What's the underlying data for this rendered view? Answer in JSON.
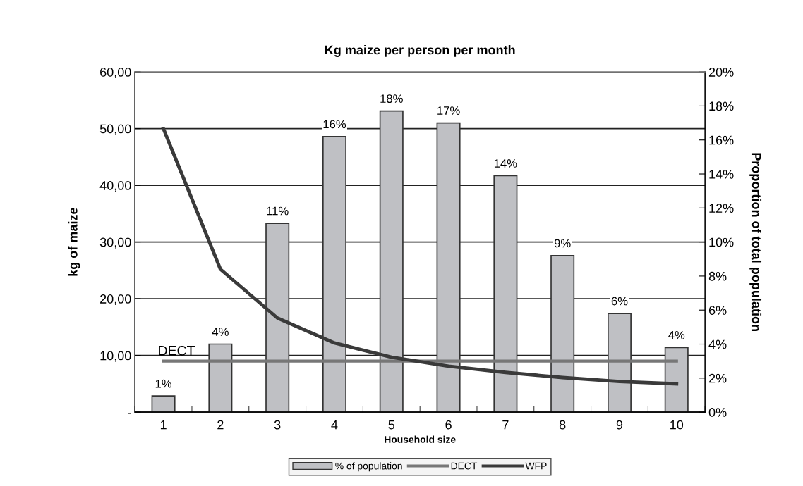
{
  "chart_data": {
    "type": "bar",
    "title": "Kg maize per person per month",
    "xlabel": "Household size",
    "ylabel": "kg of maize",
    "y2label": "Proportion of total population",
    "categories": [
      "1",
      "2",
      "3",
      "4",
      "5",
      "6",
      "7",
      "8",
      "9",
      "10"
    ],
    "series": [
      {
        "name": "% of population",
        "axis": "y2",
        "color": "#bfc0c4",
        "values": [
          0.95,
          4.0,
          11.1,
          16.2,
          17.7,
          17.0,
          13.9,
          9.2,
          5.8,
          3.8
        ],
        "value_labels": [
          "1%",
          "4%",
          "11%",
          "16%",
          "18%",
          "17%",
          "14%",
          "9%",
          "6%",
          "4%"
        ]
      },
      {
        "name": "DECT",
        "type": "line",
        "color": "#777777",
        "values": [
          9,
          9,
          9,
          9,
          9,
          9,
          9,
          9,
          9,
          9
        ]
      },
      {
        "name": "WFP",
        "type": "line",
        "color": "#3a3a3a",
        "values": [
          50,
          25.2,
          16.6,
          12.2,
          9.7,
          8.1,
          7.0,
          6.1,
          5.4,
          5.0
        ]
      }
    ],
    "annotations": [
      {
        "text": "DECT",
        "x": "1",
        "y": 9
      }
    ],
    "ylim": [
      0,
      60
    ],
    "yticks": [
      {
        "value": 0,
        "label": "-"
      },
      {
        "value": 10,
        "label": "10,00"
      },
      {
        "value": 20,
        "label": "20,00"
      },
      {
        "value": 30,
        "label": "30,00"
      },
      {
        "value": 40,
        "label": "40,00"
      },
      {
        "value": 50,
        "label": "50,00"
      },
      {
        "value": 60,
        "label": "60,00"
      }
    ],
    "y2lim": [
      0,
      20
    ],
    "y2ticks": [
      {
        "value": 0,
        "label": "0%"
      },
      {
        "value": 2,
        "label": "2%"
      },
      {
        "value": 4,
        "label": "4%"
      },
      {
        "value": 6,
        "label": "6%"
      },
      {
        "value": 8,
        "label": "8%"
      },
      {
        "value": 10,
        "label": "10%"
      },
      {
        "value": 12,
        "label": "12%"
      },
      {
        "value": 14,
        "label": "14%"
      },
      {
        "value": 16,
        "label": "16%"
      },
      {
        "value": 18,
        "label": "18%"
      },
      {
        "value": 20,
        "label": "20%"
      }
    ],
    "grid": "y",
    "legend": "bottom",
    "marker": "none",
    "line_style": "solid"
  }
}
